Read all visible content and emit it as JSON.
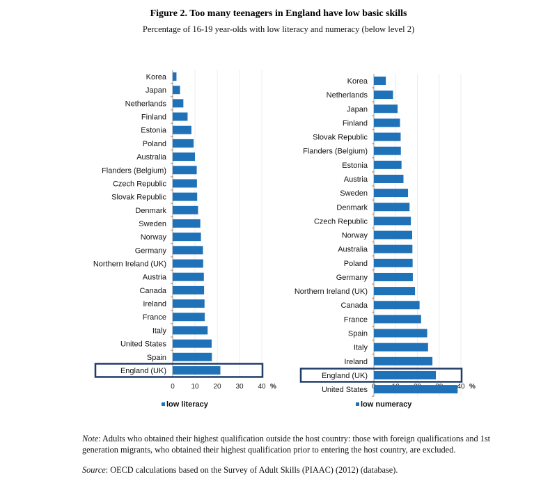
{
  "title": "Figure 2. Too many teenagers in England have low basic skills",
  "subtitle": "Percentage of 16-19 year-olds with low literacy and numeracy (below level 2)",
  "chart_data": [
    {
      "type": "bar",
      "orientation": "horizontal",
      "legend": "low literacy",
      "legend_placement": "bottom",
      "categories": [
        "Korea",
        "Japan",
        "Netherlands",
        "Finland",
        "Estonia",
        "Poland",
        "Australia",
        "Flanders (Belgium)",
        "Czech Republic",
        "Slovak Republic",
        "Denmark",
        "Sweden",
        "Norway",
        "Germany",
        "Northern Ireland (UK)",
        "Austria",
        "Canada",
        "Ireland",
        "France",
        "Italy",
        "United States",
        "Spain",
        "England (UK)"
      ],
      "values": [
        1.7,
        3.3,
        4.8,
        6.7,
        8.4,
        9.4,
        10.0,
        10.8,
        10.9,
        11.0,
        11.4,
        12.4,
        12.7,
        13.6,
        13.7,
        14.0,
        14.1,
        14.3,
        14.4,
        15.7,
        17.5,
        17.6,
        21.4
      ],
      "highlight": "England (UK)",
      "xlim": [
        0,
        40
      ],
      "ticks": [
        "0",
        "10",
        "20",
        "30",
        "40"
      ],
      "unit": "%",
      "color": "#1f72b8"
    },
    {
      "type": "bar",
      "orientation": "horizontal",
      "legend": "low numeracy",
      "legend_placement": "bottom",
      "categories": [
        "Korea",
        "Netherlands",
        "Japan",
        "Finland",
        "Slovak Republic",
        "Flanders (Belgium)",
        "Estonia",
        "Austria",
        "Sweden",
        "Denmark",
        "Czech Republic",
        "Norway",
        "Australia",
        "Poland",
        "Germany",
        "Northern Ireland (UK)",
        "Canada",
        "France",
        "Spain",
        "Italy",
        "Ireland",
        "England (UK)",
        "United States"
      ],
      "values": [
        5.5,
        8.8,
        10.9,
        12.0,
        12.3,
        12.4,
        12.7,
        13.6,
        15.7,
        16.4,
        17.0,
        17.6,
        17.7,
        17.8,
        17.9,
        18.9,
        21.0,
        21.7,
        24.5,
        24.9,
        26.9,
        28.5,
        38.5
      ],
      "highlight": "England (UK)",
      "xlim": [
        0,
        40
      ],
      "ticks": [
        "0",
        "10",
        "20",
        "30",
        "40"
      ],
      "unit": "%",
      "color": "#1f72b8"
    }
  ],
  "note": {
    "label": "Note",
    "text": ": Adults who obtained their highest qualification outside the host country: those with foreign qualifications and 1st generation migrants, who obtained their highest qualification prior to entering the host country, are excluded."
  },
  "source": {
    "label": "Source",
    "text": ": OECD calculations based on the Survey of Adult Skills (PIAAC) (2012) (database)."
  }
}
